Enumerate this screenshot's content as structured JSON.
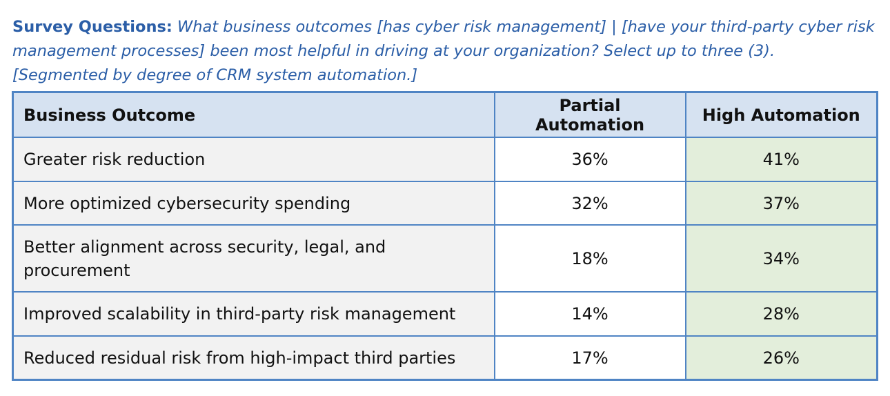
{
  "caption": {
    "lead": "Survey Questions:",
    "body": " What business outcomes [has cyber risk management] | [have your third-party cyber risk management processes] been most helpful in driving at your organization? Select up to three (3). [Segmented by degree of CRM system automation.]"
  },
  "table": {
    "headers": {
      "outcome": "Business Outcome",
      "partial": "Partial Automation",
      "high": "High Automation"
    },
    "rows": [
      {
        "outcome": "Greater risk reduction",
        "partial": "36%",
        "high": "41%"
      },
      {
        "outcome": "More optimized cybersecurity spending",
        "partial": "32%",
        "high": "37%"
      },
      {
        "outcome": "Better alignment across security, legal, and procurement",
        "partial": "18%",
        "high": "34%"
      },
      {
        "outcome": "Improved scalability in third-party risk management",
        "partial": "14%",
        "high": "28%"
      },
      {
        "outcome": "Reduced residual risk from high-impact third parties",
        "partial": "17%",
        "high": "26%"
      }
    ]
  },
  "colors": {
    "caption_text": "#2b5ea7",
    "border": "#4f84c4",
    "header_bg": "#d6e2f1",
    "outcome_bg": "#f2f2f2",
    "high_bg": "#e3eedb"
  }
}
